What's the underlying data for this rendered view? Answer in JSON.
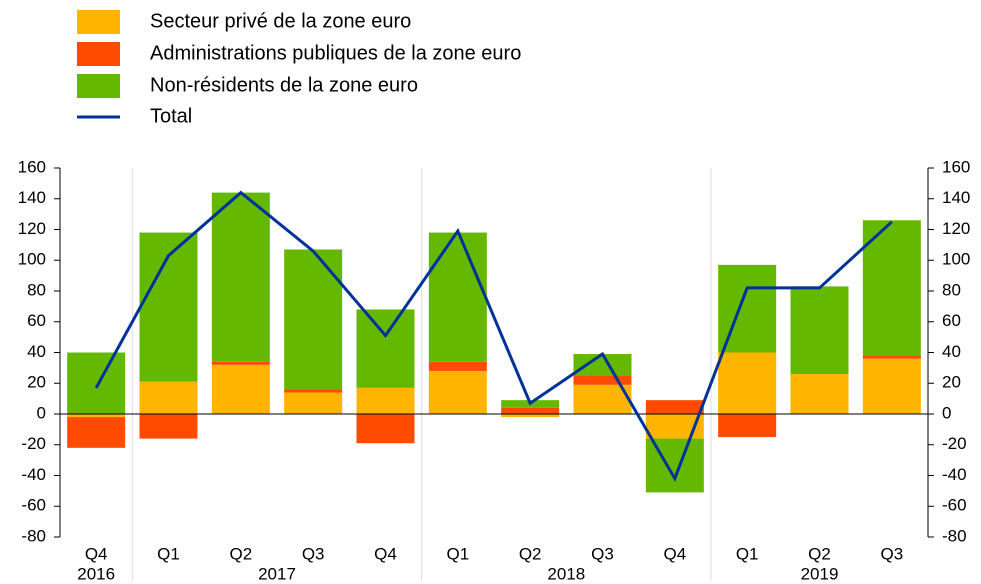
{
  "chart_data": {
    "type": "bar",
    "stacked": true,
    "categories": [
      "Q4",
      "Q1",
      "Q2",
      "Q3",
      "Q4",
      "Q1",
      "Q2",
      "Q3",
      "Q4",
      "Q1",
      "Q2",
      "Q3"
    ],
    "groups": [
      {
        "label": "2016",
        "n": 1
      },
      {
        "label": "2017",
        "n": 4
      },
      {
        "label": "2018",
        "n": 4
      },
      {
        "label": "2019",
        "n": 3
      }
    ],
    "series": [
      {
        "name": "Secteur privé de la zone euro",
        "color": "#ffb400",
        "values": [
          -2,
          21,
          32,
          14,
          17,
          28,
          -2,
          19,
          -16,
          40,
          26,
          36
        ]
      },
      {
        "name": "Administrations publiques de la zone euro",
        "color": "#ff4b00",
        "values": [
          -20,
          -16,
          2,
          2,
          -19,
          6,
          4,
          6,
          9,
          -15,
          0,
          2
        ]
      },
      {
        "name": "Non-résidents de la zone euro",
        "color": "#65b800",
        "values": [
          40,
          97,
          110,
          91,
          51,
          84,
          5,
          14,
          -35,
          57,
          57,
          88
        ]
      },
      {
        "name": "Total",
        "type": "line",
        "color": "#003299",
        "values": [
          17,
          103,
          144,
          106,
          51,
          119,
          7,
          39,
          -42,
          82,
          82,
          125
        ]
      }
    ],
    "ylim": [
      -80,
      160
    ],
    "yticks": [
      -80,
      -60,
      -40,
      -20,
      0,
      20,
      40,
      60,
      80,
      100,
      120,
      140,
      160
    ],
    "y2lim": [
      -80,
      160
    ],
    "y2ticks": [
      -80,
      -60,
      -40,
      -20,
      0,
      20,
      40,
      60,
      80,
      100,
      120,
      140,
      160
    ],
    "legend": "top-left"
  }
}
